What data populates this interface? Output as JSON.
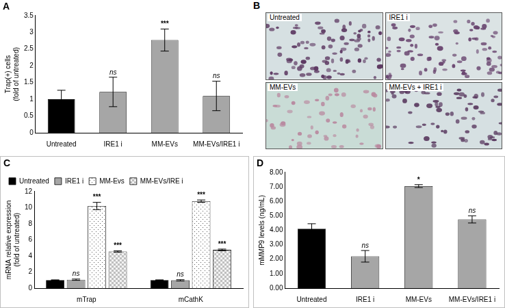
{
  "chart_data": [
    {
      "type": "bar",
      "title": "A",
      "y_label": [
        "Trap(+) cells",
        "(fold of untreated)"
      ],
      "categories": [
        "Untreated",
        "IRE1 i",
        "MM-EVs",
        "MM-EVs/IRE1 i"
      ],
      "values": [
        1.0,
        1.22,
        2.77,
        1.1
      ],
      "errors": [
        0.27,
        0.44,
        0.33,
        0.44
      ],
      "annotations": [
        null,
        "ns",
        "***",
        "ns"
      ],
      "colors": [
        "#000000",
        "#a6a6a6",
        "#a6a6a6",
        "#a6a6a6"
      ],
      "ylim": [
        0,
        3.5
      ],
      "yticks": [
        0,
        0.5,
        1,
        1.5,
        2,
        2.5,
        3,
        3.5
      ],
      "grid": false
    },
    {
      "type": "bar",
      "title": "C",
      "y_label": [
        "mRNA relative expression",
        "(fold of untreated)"
      ],
      "categories": [
        "mTrap",
        "mCathK"
      ],
      "series": [
        {
          "name": "Untreated",
          "color": "#000000",
          "values": [
            1.0,
            1.0
          ],
          "errors": [
            0.03,
            0.03
          ],
          "annotations": [
            null,
            null
          ]
        },
        {
          "name": "IRE1 i",
          "color": "#a6a6a6",
          "values": [
            1.05,
            0.97
          ],
          "errors": [
            0.08,
            0.08
          ],
          "annotations": [
            "ns",
            "ns"
          ]
        },
        {
          "name": "MM-Evs",
          "color": "#ffffff",
          "values": [
            10.2,
            10.8
          ],
          "errors": [
            0.45,
            0.15
          ],
          "annotations": [
            "***",
            "***"
          ]
        },
        {
          "name": "MM-EVs/IRE i",
          "color": "#bfbfbf",
          "values": [
            4.55,
            4.75
          ],
          "errors": [
            0.08,
            0.1
          ],
          "annotations": [
            "***",
            "***"
          ]
        }
      ],
      "ylim": [
        0,
        12
      ],
      "yticks": [
        0,
        2,
        4,
        6,
        8,
        10,
        12
      ],
      "grid": false,
      "legend": "top-left"
    },
    {
      "type": "bar",
      "title": "D",
      "y_label": "mMMP9 levels (ng/mL)",
      "categories": [
        "Untreated",
        "IRE1 i",
        "MM-EVs",
        "MM-EVs/IRE1 i"
      ],
      "values": [
        4.1,
        2.2,
        7.05,
        4.75
      ],
      "errors": [
        0.35,
        0.4,
        0.1,
        0.25
      ],
      "annotations": [
        null,
        "ns",
        "*",
        "ns"
      ],
      "colors": [
        "#000000",
        "#a6a6a6",
        "#a6a6a6",
        "#a6a6a6"
      ],
      "ylim": [
        0,
        8
      ],
      "yticks": [
        {
          "value": 0,
          "label": "0.00"
        },
        {
          "value": 1,
          "label": "1.00"
        },
        {
          "value": 2,
          "label": "2.00"
        },
        {
          "value": 3,
          "label": "3.00"
        },
        {
          "value": 4,
          "label": "4.00"
        },
        {
          "value": 5,
          "label": "5.00"
        },
        {
          "value": 6,
          "label": "6.00"
        },
        {
          "value": 7,
          "label": "7.00"
        },
        {
          "value": 8,
          "label": "8.00"
        }
      ],
      "grid": false
    }
  ],
  "image_panel": {
    "title": "B",
    "captions": [
      "Untreated",
      "IRE1 i",
      "MM-EVs",
      "MM-EVs + IRE1 i"
    ]
  }
}
